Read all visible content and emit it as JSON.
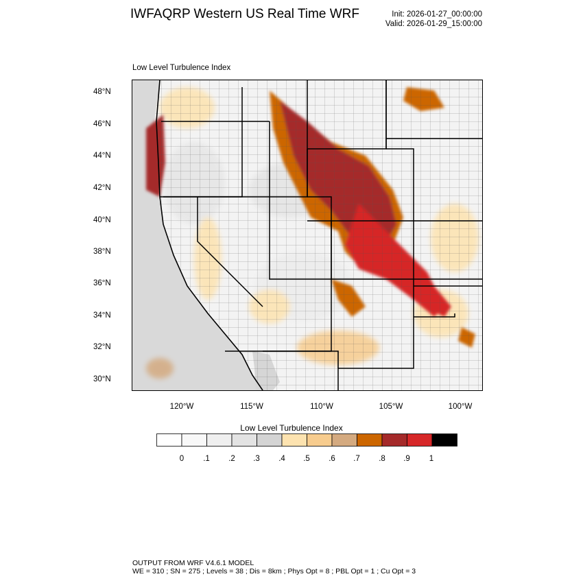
{
  "header": {
    "title": "IWFAQRP Western US Real Time WRF",
    "init": "Init: 2026-01-27_00:00:00",
    "valid": "Valid: 2026-01-29_15:00:00"
  },
  "map": {
    "subtitle": "Low Level Turbulence Index",
    "lat_labels": [
      "48°N",
      "46°N",
      "44°N",
      "42°N",
      "40°N",
      "38°N",
      "36°N",
      "34°N",
      "32°N",
      "30°N"
    ],
    "lon_labels": [
      "120°W",
      "115°W",
      "110°W",
      "105°W",
      "100°W"
    ]
  },
  "colorbar": {
    "title": "Low Level Turbulence Index",
    "labels": [
      "0",
      ".1",
      ".2",
      ".3",
      ".4",
      ".5",
      ".6",
      ".7",
      ".8",
      ".9",
      "1"
    ],
    "colors": [
      "#ffffff",
      "#f8f8f8",
      "#efefef",
      "#e3e3e3",
      "#d4d4d4",
      "#fde3b0",
      "#f7cc8e",
      "#d4aa80",
      "#cc6600",
      "#a52a2a",
      "#d62728",
      "#000000"
    ]
  },
  "footer": {
    "line1": "OUTPUT FROM WRF V4.6.1 MODEL",
    "line2": "WE = 310 ; SN = 275 ; Levels = 38 ; Dis = 8km ; Phys Opt = 8 ; PBL Opt = 1 ; Cu Opt = 3"
  }
}
